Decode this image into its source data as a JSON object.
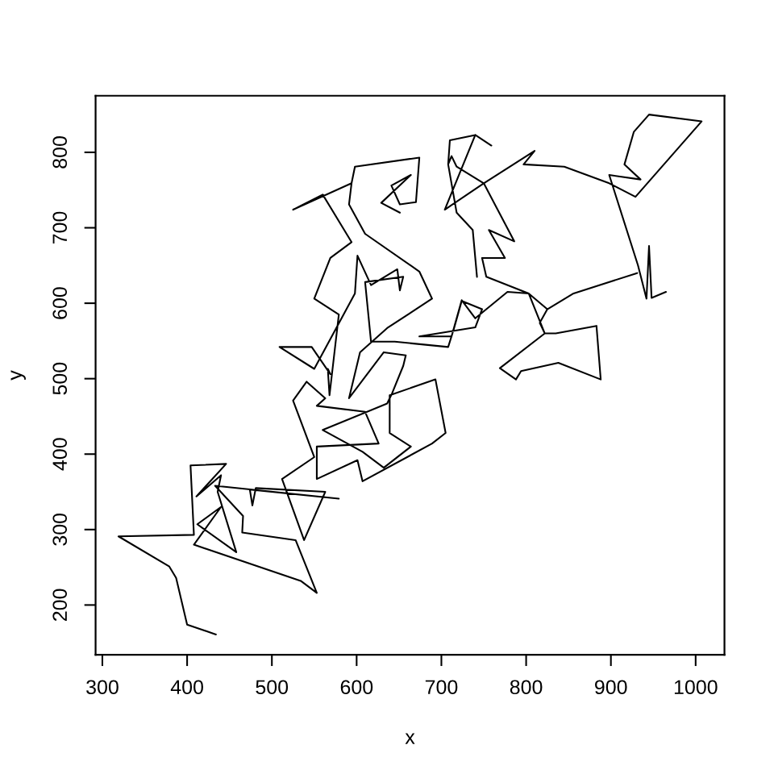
{
  "chart_data": {
    "type": "line",
    "xlabel": "x",
    "ylabel": "y",
    "xlim": [
      292,
      1034
    ],
    "ylim": [
      134,
      875
    ],
    "xticks": [
      300,
      400,
      500,
      600,
      700,
      800,
      900,
      1000
    ],
    "yticks": [
      200,
      300,
      400,
      500,
      600,
      700,
      800
    ],
    "x": [
      434,
      400,
      387,
      379,
      319,
      408,
      404,
      446,
      411,
      440,
      436,
      458,
      412,
      440,
      408,
      534,
      553,
      528,
      465,
      466,
      433,
      579,
      474,
      477,
      481,
      563,
      538,
      512,
      550,
      525,
      541,
      563,
      553,
      610,
      626,
      553,
      553,
      601,
      607,
      689,
      705,
      693,
      639,
      639,
      664,
      632,
      607,
      560,
      636,
      642,
      655,
      658,
      632,
      591,
      604,
      636,
      689,
      674,
      610,
      591,
      594,
      598,
      674,
      670,
      651,
      641,
      664,
      629,
      651,
      629,
      664,
      641,
      651,
      670,
      674,
      598,
      594,
      525,
      560,
      594,
      569,
      550,
      579,
      568,
      566,
      569,
      547,
      509,
      550,
      598,
      601,
      617,
      648,
      651,
      655,
      610,
      617,
      645,
      708,
      715,
      724,
      748,
      740,
      674,
      712,
      724,
      740,
      778,
      803,
      825,
      856,
      931,
      856,
      825,
      816,
      822,
      835,
      883,
      888,
      838,
      794,
      788,
      769,
      822,
      803,
      753,
      748,
      775,
      756,
      786,
      750,
      718,
      712,
      708,
      718,
      737,
      742,
      737,
      718,
      708,
      710,
      740,
      759,
      740,
      704,
      750,
      810,
      797,
      845,
      898,
      929,
      1007,
      945,
      927,
      916,
      935,
      898,
      932,
      942,
      945,
      948,
      965
    ],
    "series": [
      {
        "color": "#000000",
        "values": [
          161,
          174,
          236,
          251,
          291,
          293,
          385,
          387,
          344,
          372,
          350,
          270,
          307,
          330,
          280,
          232,
          216,
          286,
          296,
          318,
          358,
          341,
          353,
          332,
          355,
          350,
          286,
          367,
          396,
          471,
          496,
          474,
          464,
          456,
          414,
          410,
          367,
          392,
          364,
          414,
          428,
          499,
          478,
          428,
          410,
          382,
          403,
          432,
          467,
          481,
          517,
          531,
          535,
          474,
          535,
          567,
          606,
          642,
          692,
          731,
          759,
          781,
          793,
          734,
          731,
          756,
          770,
          733,
          720,
          733,
          770,
          756,
          731,
          734,
          793,
          781,
          759,
          724,
          744,
          681,
          660,
          606,
          585,
          478,
          513,
          506,
          542,
          542,
          513,
          613,
          663,
          624,
          645,
          617,
          635,
          628,
          549,
          549,
          542,
          567,
          603,
          592,
          568,
          556,
          556,
          604,
          580,
          615,
          613,
          592,
          613,
          640,
          613,
          592,
          574,
          560,
          560,
          570,
          499,
          521,
          510,
          499,
          514,
          560,
          613,
          635,
          660,
          660,
          697,
          682,
          759,
          781,
          795,
          784,
          720,
          697,
          635,
          697,
          720,
          784,
          816,
          823,
          809,
          823,
          724,
          759,
          802,
          784,
          781,
          759,
          741,
          841,
          850,
          827,
          784,
          764,
          770,
          650,
          606,
          676,
          607,
          615
        ]
      }
    ]
  }
}
